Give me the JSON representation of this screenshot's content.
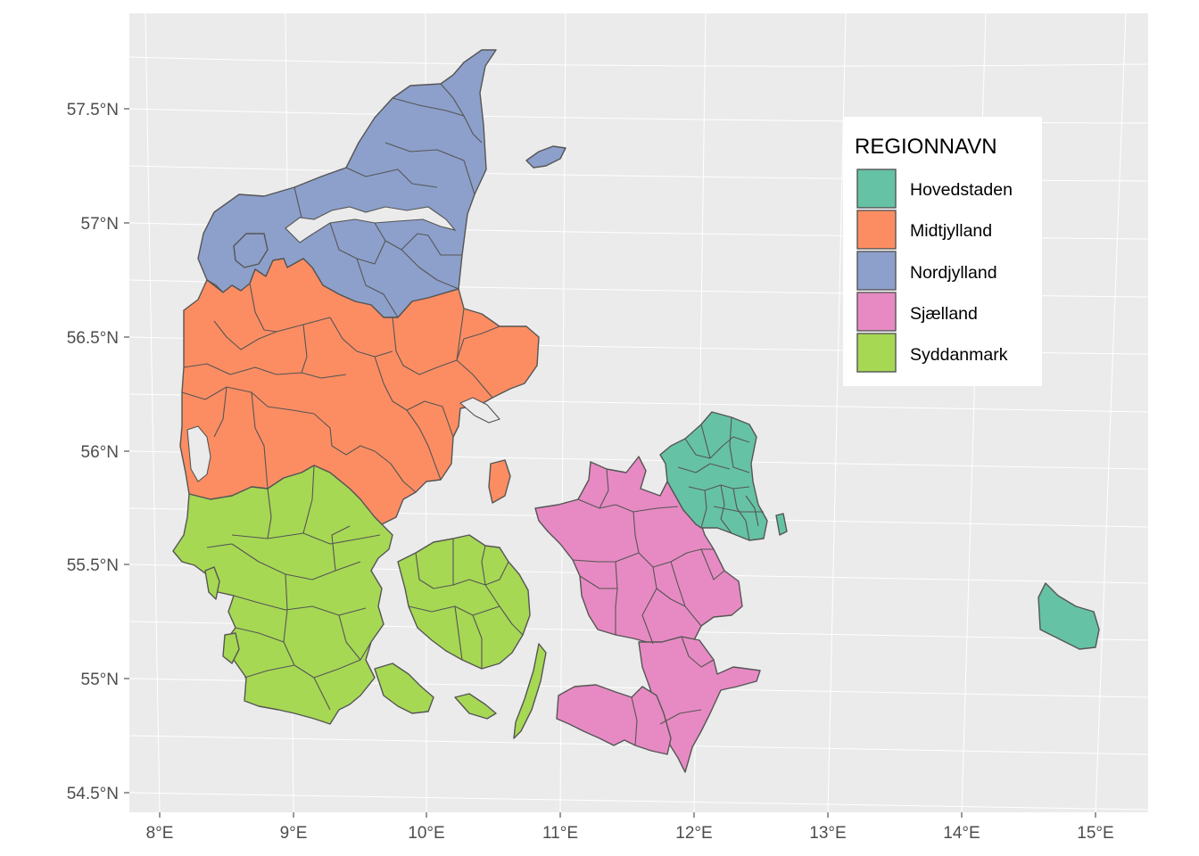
{
  "legend": {
    "title": "REGIONNAVN",
    "items": [
      {
        "label": "Hovedstaden",
        "color": "#66C2A5"
      },
      {
        "label": "Midtjylland",
        "color": "#FC8D62"
      },
      {
        "label": "Nordjylland",
        "color": "#8DA0CB"
      },
      {
        "label": "Sjælland",
        "color": "#E78AC3"
      },
      {
        "label": "Syddanmark",
        "color": "#A6D854"
      }
    ]
  },
  "axes": {
    "x_ticks": [
      "8°E",
      "9°E",
      "10°E",
      "11°E",
      "12°E",
      "13°E",
      "14°E",
      "15°E"
    ],
    "y_ticks": [
      "57.5°N",
      "57°N",
      "56.5°N",
      "56°N",
      "55.5°N",
      "55°N",
      "54.5°N"
    ]
  },
  "panel_background": "#EBEBEB",
  "border_color": "#555555"
}
